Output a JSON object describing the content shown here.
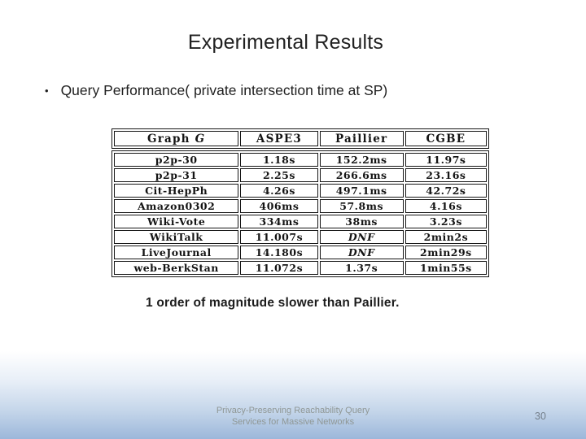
{
  "slide": {
    "title": "Experimental Results",
    "bullet_glyph": "•",
    "bullet_text": "Query Performance( private intersection time at SP)",
    "note": "1 order of magnitude slower than Paillier.",
    "footer": {
      "line1": "Privacy-Preserving Reachability Query",
      "line2": "Services for Massive Networks"
    },
    "page_number": "30"
  },
  "table": {
    "header": {
      "col1_text": "Graph ",
      "col1_var": "G",
      "col2": "ASPE3",
      "col3": "Paillier",
      "col4": "CGBE"
    },
    "rows": [
      [
        "p2p-30",
        "1.18s",
        "152.2ms",
        "11.97s"
      ],
      [
        "p2p-31",
        "2.25s",
        "266.6ms",
        "23.16s"
      ],
      [
        "Cit-HepPh",
        "4.26s",
        "497.1ms",
        "42.72s"
      ],
      [
        "Amazon0302",
        "406ms",
        "57.8ms",
        "4.16s"
      ],
      [
        "Wiki-Vote",
        "334ms",
        "38ms",
        "3.23s"
      ],
      [
        "WikiTalk",
        "11.007s",
        "DNF",
        "2min2s"
      ],
      [
        "LiveJournal",
        "14.180s",
        "DNF",
        "2min29s"
      ],
      [
        "web-BerkStan",
        "11.072s",
        "1.37s",
        "1min55s"
      ]
    ],
    "italic_value": "DNF"
  },
  "colors": {
    "text": "#1f1f1f",
    "table_border": "#161616",
    "footer_text": "#8f9795",
    "page_number_text": "#75808b",
    "gradient_bottom": "#9cb7da"
  }
}
